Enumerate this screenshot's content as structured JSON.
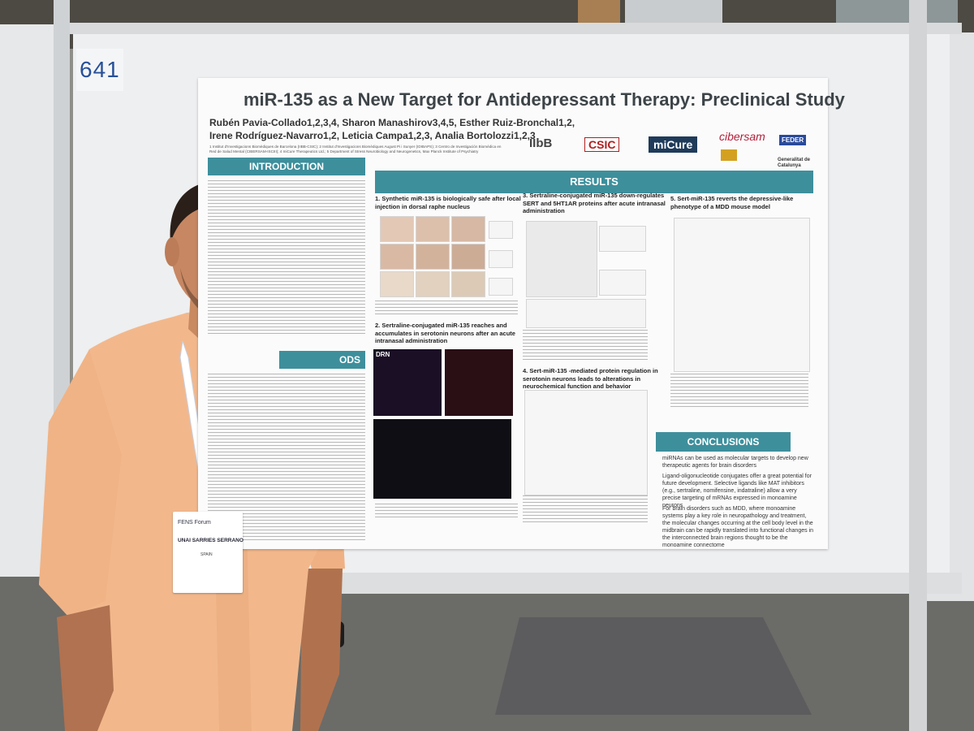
{
  "board": {
    "number": "641"
  },
  "poster": {
    "title": "miR-135 as a New Target for Antidepressant Therapy: Preclinical Study",
    "authors_line1": "Rubén Pavia-Collado1,2,3,4, Sharon Manashirov3,4,5, Esther Ruiz-Bronchal1,2,",
    "authors_line2": "Irene Rodríguez-Navarro1,2, Leticia Campa1,2,3, Analia Bortolozzi1,2,3",
    "affiliation_line1": "1 Institut d'Investigacions Biomèdiques de Barcelona (IIBB-CSIC); 2 Institut d'Investigacions Biomèdiques August Pi i Sunyer (IDIBAPS); 3 Centro de Investigación Biomédica en",
    "affiliation_line2": "Red de Salud Mental (CIBERSAM-ISCIII); 4 miCure Therapeutics Ltd.; 5 Department of Stress Neurobiology and Neurogenetics, Max Planck Institute of Psychiatry",
    "logos": [
      "IIbB",
      "CSIC",
      "miCure",
      "cibersam",
      "FEDER",
      "Generalitat de Catalunya"
    ],
    "sections": {
      "introduction": "INTRODUCTION",
      "results": "RESULTS",
      "conclusions": "CONCLUSIONS",
      "methods_fragment": "ODS"
    },
    "result_headings": [
      "1. Synthetic miR-135 is biologically safe after local injection in dorsal raphe nucleus",
      "2. Sertraline-conjugated miR-135 reaches and accumulates in serotonin neurons after an acute intranasal administration",
      "3. Sertraline-conjugated miR-135 down-regulates SERT and 5HT1AR proteins after acute intranasal administration",
      "4. Sert-miR-135 -mediated protein regulation in serotonin neurons leads to alterations in neurochemical function and behavior",
      "5. Sert-miR-135 reverts the depressive-like phenotype of a MDD mouse model"
    ],
    "fig_labels": {
      "drn": "DRN"
    },
    "conclusions": [
      "miRNAs can be used as molecular targets to develop new therapeutic agents for brain disorders",
      "Ligand-oligonucleotide conjugates offer a great potential for future development. Selective ligands like MAT inhibitors (e.g., sertraline, nomifensine, indatraline) allow a very precise targeting of mRNAs expressed in monoamine neurons",
      "For brain disorders such as MDD, where monoamine systems play a key role in neuropathology and treatment, the molecular changes occurring at the cell body level in the midbrain can be rapidly translated into functional changes in the interconnected brain regions thought to be the monoamine connectome"
    ]
  },
  "badge": {
    "event": "FENS Forum",
    "name": "UNAI SARRIES SERRANO",
    "country": "SPAIN"
  },
  "colors": {
    "band_teal": "#3e8f9c",
    "board_number": "#27509a",
    "shirt": "#f2b88c"
  }
}
